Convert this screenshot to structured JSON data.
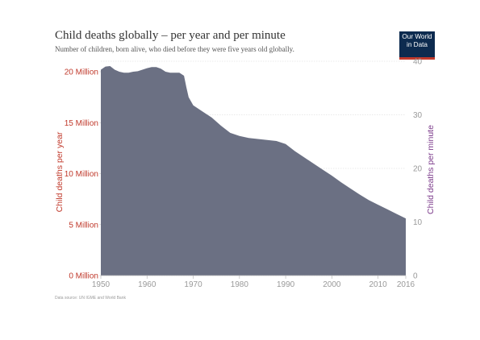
{
  "header": {
    "title": "Child deaths globally – per year and per minute",
    "subtitle": "Number of children, born alive, who died before they were five years old globally."
  },
  "logo": {
    "line1": "Our World",
    "line2": "in Data"
  },
  "source": "Data source: UN IGME and World Bank",
  "colors": {
    "area": "#6b7083",
    "left_axis": "#c0392b",
    "right_axis": "#7b3a8a",
    "grid": "#d5d5d5",
    "tick_text": "#999999"
  },
  "chart_data": {
    "type": "area",
    "x_ticks": [
      1950,
      1960,
      1970,
      1980,
      1990,
      2000,
      2010,
      2016
    ],
    "y_left_ticks": [
      "0 Million",
      "5 Million",
      "10 Million",
      "15 Million",
      "20 Million"
    ],
    "y_right_ticks": [
      "0",
      "10",
      "20",
      "30",
      "40"
    ],
    "ylabel_left": "Child deaths per year",
    "ylabel_right": "Child deaths per minute",
    "xlim": [
      1950,
      2016
    ],
    "ylim_left": [
      0,
      20000000
    ],
    "ylim_right": [
      0,
      40
    ],
    "grid": true,
    "series": [
      {
        "x": [
          1950,
          1951,
          1952,
          1953,
          1954,
          1955,
          1956,
          1957,
          1958,
          1959,
          1960,
          1961,
          1962,
          1963,
          1964,
          1965,
          1966,
          1967,
          1968,
          1968.5,
          1969,
          1970,
          1972,
          1974,
          1976,
          1978,
          1980,
          1982,
          1984,
          1986,
          1988,
          1990,
          1992,
          1994,
          1996,
          1998,
          2000,
          2002,
          2004,
          2006,
          2008,
          2010,
          2012,
          2014,
          2016
        ],
        "y": [
          20200000,
          20500000,
          20550000,
          20200000,
          20000000,
          19900000,
          19900000,
          20000000,
          20050000,
          20200000,
          20350000,
          20450000,
          20450000,
          20300000,
          20000000,
          19900000,
          19900000,
          19900000,
          19600000,
          18500000,
          17500000,
          16700000,
          16100000,
          15500000,
          14700000,
          14000000,
          13700000,
          13500000,
          13400000,
          13300000,
          13200000,
          12900000,
          12200000,
          11600000,
          11000000,
          10400000,
          9800000,
          9150000,
          8550000,
          7950000,
          7400000,
          6950000,
          6500000,
          6050000,
          5600000
        ]
      }
    ]
  }
}
